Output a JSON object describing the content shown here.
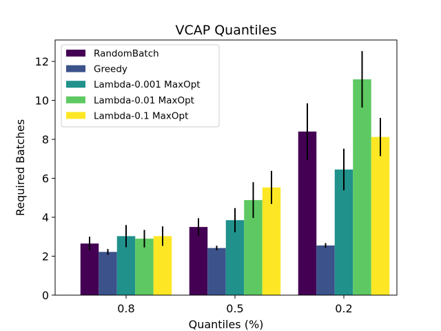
{
  "chart_data": {
    "type": "bar",
    "title": "VCAP Quantiles",
    "xlabel": "Quantiles (%)",
    "ylabel": "Required Batches",
    "categories": [
      "0.8",
      "0.5",
      "0.2"
    ],
    "ylim": [
      0,
      13.1
    ],
    "yticks": [
      0,
      2,
      4,
      6,
      8,
      10,
      12
    ],
    "legend_position": "top-left",
    "series": [
      {
        "name": "RandomBatch",
        "color": "#440154",
        "values": [
          2.65,
          3.5,
          8.4
        ],
        "errors": [
          0.35,
          0.45,
          1.45
        ]
      },
      {
        "name": "Greedy",
        "color": "#3b528b",
        "values": [
          2.22,
          2.42,
          2.55
        ],
        "errors": [
          0.15,
          0.12,
          0.12
        ]
      },
      {
        "name": "Lambda-0.001 MaxOpt",
        "color": "#21918c",
        "values": [
          3.03,
          3.85,
          6.45
        ],
        "errors": [
          0.57,
          0.62,
          1.07
        ]
      },
      {
        "name": "Lambda-0.01 MaxOpt",
        "color": "#5ec962",
        "values": [
          2.9,
          4.88,
          11.08
        ],
        "errors": [
          0.45,
          0.92,
          1.45
        ]
      },
      {
        "name": "Lambda-0.1 MaxOpt",
        "color": "#fde725",
        "values": [
          3.03,
          5.53,
          8.12
        ],
        "errors": [
          0.5,
          0.85,
          0.98
        ]
      }
    ]
  }
}
